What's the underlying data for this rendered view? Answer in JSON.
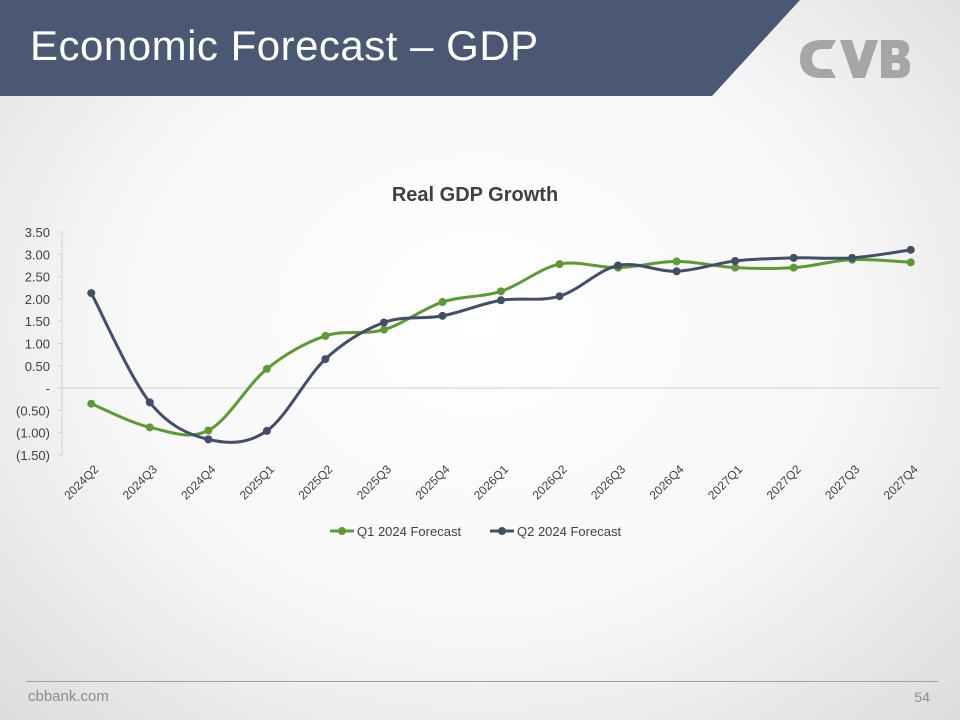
{
  "slide": {
    "title": "Economic Forecast – GDP",
    "footer_site": "cbbank.com",
    "page_number": "54",
    "logo_alt": "CVB logo"
  },
  "colors": {
    "header_bg": "#4a5873",
    "q1_series": "#5e9a33",
    "q2_series": "#434e69",
    "logo": "#a6a6a6"
  },
  "chart_data": {
    "type": "line",
    "title": "Real GDP Growth",
    "categories": [
      "2024Q2",
      "2024Q3",
      "2024Q4",
      "2025Q1",
      "2025Q2",
      "2025Q3",
      "2025Q4",
      "2026Q1",
      "2026Q2",
      "2026Q3",
      "2026Q4",
      "2027Q1",
      "2027Q2",
      "2027Q3",
      "2027Q4"
    ],
    "series": [
      {
        "name": "Q1 2024 Forecast",
        "color": "#5e9a33",
        "values": [
          -0.35,
          -0.88,
          -0.95,
          0.43,
          1.17,
          1.31,
          1.93,
          2.17,
          2.78,
          2.7,
          2.84,
          2.7,
          2.7,
          2.88,
          2.82
        ]
      },
      {
        "name": "Q2 2024 Forecast",
        "color": "#434e69",
        "values": [
          2.13,
          -0.32,
          -1.15,
          -0.96,
          0.65,
          1.47,
          1.62,
          1.97,
          2.06,
          2.75,
          2.62,
          2.85,
          2.92,
          2.92,
          3.1
        ]
      }
    ],
    "yticks": [
      "3.50",
      "3.00",
      "2.50",
      "2.00",
      "1.50",
      "1.00",
      "0.50",
      "-",
      "(0.50)",
      "(1.00)",
      "(1.50)"
    ],
    "ylim": [
      -1.5,
      3.5
    ],
    "grid": false,
    "legend_position": "bottom",
    "xlabel": "",
    "ylabel": ""
  }
}
